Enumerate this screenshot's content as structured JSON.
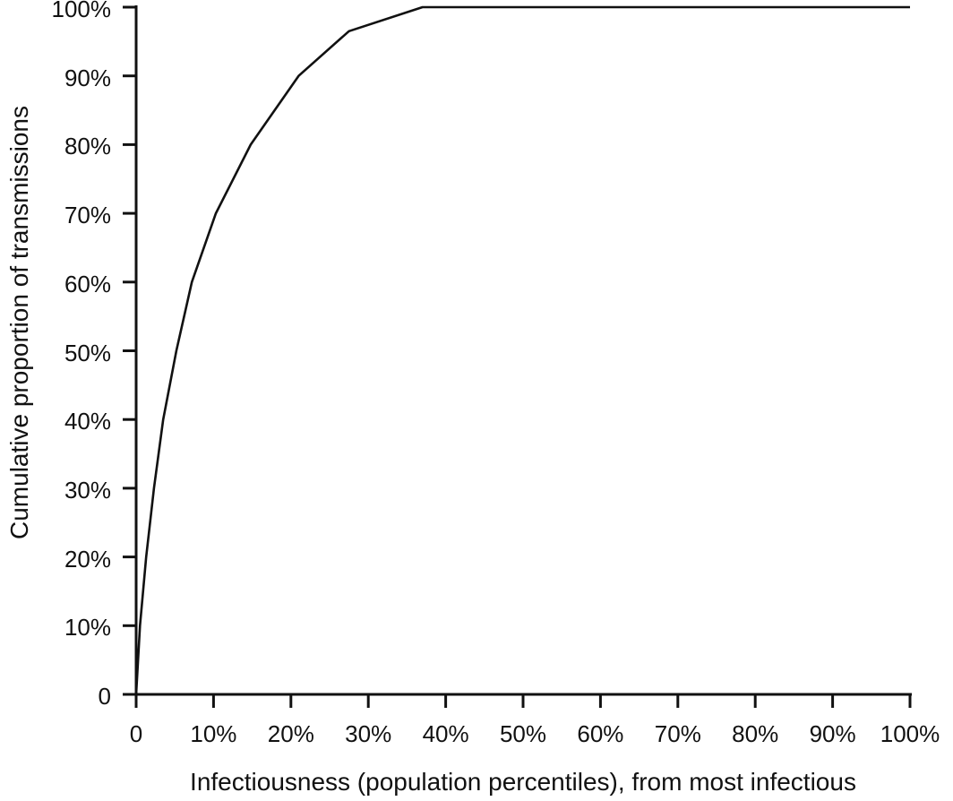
{
  "figure": {
    "background": "#ffffff",
    "axis_color": "#111111"
  },
  "chart_data": {
    "type": "line",
    "title": "",
    "xlabel": "Infectiousness (population percentiles), from most infectious",
    "ylabel": "Cumulative proportion of transmissions",
    "xlim": [
      0,
      100
    ],
    "ylim": [
      0,
      100
    ],
    "grid": false,
    "legend": "none",
    "line_color": "#111111",
    "x_tick_values": [
      0,
      10,
      20,
      30,
      40,
      50,
      60,
      70,
      80,
      90,
      100
    ],
    "x_tick_labels": [
      "0",
      "10%",
      "20%",
      "30%",
      "40%",
      "50%",
      "60%",
      "70%",
      "80%",
      "90%",
      "100%"
    ],
    "y_tick_values": [
      0,
      10,
      20,
      30,
      40,
      50,
      60,
      70,
      80,
      90,
      100
    ],
    "y_tick_labels": [
      "0",
      "10%",
      "20%",
      "30%",
      "40%",
      "50%",
      "60%",
      "70%",
      "80%",
      "90%",
      "100%"
    ],
    "series": [
      {
        "name": "Cumulative proportion of transmissions",
        "points": [
          [
            0,
            0
          ],
          [
            0.5,
            10
          ],
          [
            1.3,
            20
          ],
          [
            2.3,
            30
          ],
          [
            3.5,
            40
          ],
          [
            5.2,
            50
          ],
          [
            7.2,
            60
          ],
          [
            10.3,
            70
          ],
          [
            14.8,
            80
          ],
          [
            21,
            90
          ],
          [
            27.5,
            96.5
          ],
          [
            37,
            100
          ],
          [
            100,
            100
          ]
        ]
      }
    ]
  }
}
